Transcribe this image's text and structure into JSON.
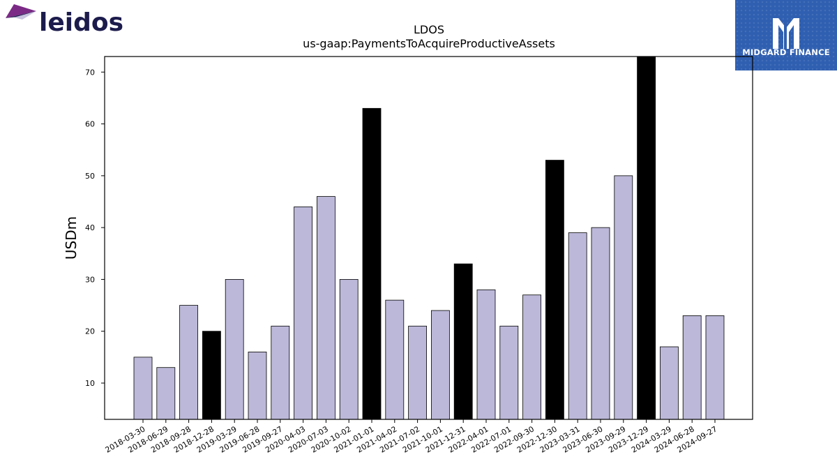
{
  "brand": {
    "left_name": "leidos",
    "right_name": "MIDGARD FINANCE"
  },
  "colors": {
    "bar_default": "#bcb8d9",
    "bar_highlight": "#000000",
    "bar_edge": "#000000",
    "leidos_text": "#1c1b4c",
    "leidos_mark_purple": "#7b2a86",
    "leidos_mark_navy": "#1c1b4c",
    "midgard_bg": "#2f5fb0"
  },
  "chart_data": {
    "type": "bar",
    "title": "LDOS",
    "subtitle": "us-gaap:PaymentsToAcquireProductiveAssets",
    "xlabel": "",
    "ylabel": "USDm",
    "ylim": [
      3,
      73
    ],
    "yticks": [
      10,
      20,
      30,
      40,
      50,
      60,
      70
    ],
    "grid": false,
    "categories": [
      "2018-03-30",
      "2018-06-29",
      "2018-09-28",
      "2018-12-28",
      "2019-03-29",
      "2019-06-28",
      "2019-09-27",
      "2020-04-03",
      "2020-07-03",
      "2020-10-02",
      "2021-01-01",
      "2021-04-02",
      "2021-07-02",
      "2021-10-01",
      "2021-12-31",
      "2022-04-01",
      "2022-07-01",
      "2022-09-30",
      "2022-12-30",
      "2023-03-31",
      "2023-06-30",
      "2023-09-29",
      "2023-12-29",
      "2024-03-29",
      "2024-06-28",
      "2024-09-27"
    ],
    "values": [
      15,
      13,
      25,
      20,
      30,
      16,
      21,
      44,
      46,
      30,
      63,
      26,
      21,
      24,
      33,
      28,
      21,
      27,
      53,
      39,
      40,
      50,
      73,
      17,
      23,
      23
    ],
    "highlight": [
      false,
      false,
      false,
      true,
      false,
      false,
      false,
      false,
      false,
      false,
      true,
      false,
      false,
      false,
      true,
      false,
      false,
      false,
      true,
      false,
      false,
      false,
      true,
      false,
      false,
      false
    ]
  }
}
